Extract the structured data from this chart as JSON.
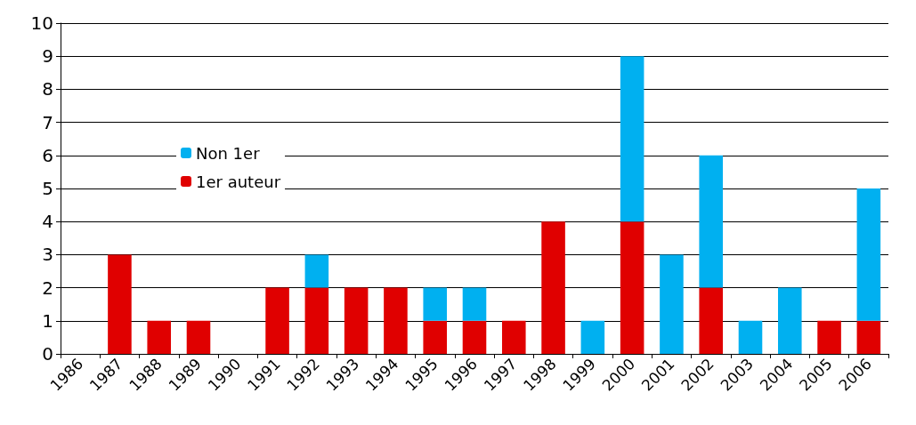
{
  "chart_data": {
    "type": "bar",
    "stacked": true,
    "categories": [
      "1986",
      "1987",
      "1988",
      "1989",
      "1990",
      "1991",
      "1992",
      "1993",
      "1994",
      "1995",
      "1996",
      "1997",
      "1998",
      "1999",
      "2000",
      "2001",
      "2002",
      "2003",
      "2004",
      "2005",
      "2006"
    ],
    "series": [
      {
        "name": "1er auteur",
        "color": "#e00000",
        "values": [
          0,
          3,
          1,
          1,
          0,
          2,
          2,
          2,
          2,
          1,
          1,
          1,
          4,
          0,
          4,
          0,
          2,
          0,
          0,
          1,
          1
        ]
      },
      {
        "name": "Non 1er",
        "color": "#00b0f0",
        "values": [
          0,
          0,
          0,
          0,
          0,
          0,
          1,
          0,
          0,
          1,
          1,
          0,
          0,
          1,
          5,
          3,
          4,
          1,
          2,
          0,
          4
        ]
      }
    ],
    "ylim": [
      0,
      10
    ],
    "yticks": [
      0,
      1,
      2,
      3,
      4,
      5,
      6,
      7,
      8,
      9,
      10
    ],
    "grid": "y",
    "legend": "left"
  }
}
